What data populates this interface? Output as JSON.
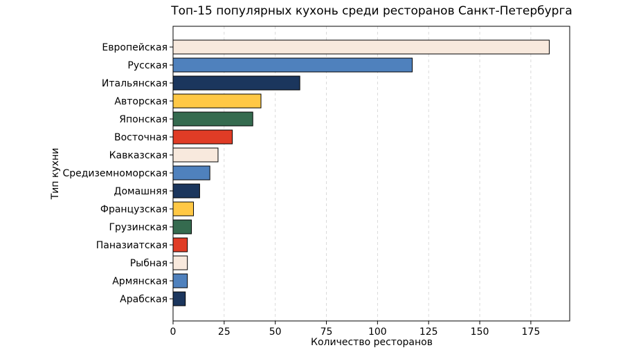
{
  "chart_data": {
    "type": "bar",
    "orientation": "horizontal",
    "title": "Топ-15 популярных кухонь среди ресторанов Санкт-Петербурга",
    "xlabel": "Количество ресторанов",
    "ylabel": "Тип кухни",
    "xlim": [
      0,
      194
    ],
    "xticks": [
      0,
      25,
      50,
      75,
      100,
      125,
      150,
      175
    ],
    "grid": "x-dashed",
    "categories": [
      "Европейская",
      "Русская",
      "Итальянская",
      "Авторская",
      "Японская",
      "Восточная",
      "Кавказская",
      "Средиземноморская",
      "Домашняя",
      "Французская",
      "Грузинская",
      "Паназиатская",
      "Рыбная",
      "Армянская",
      "Арабская"
    ],
    "values": [
      184,
      117,
      62,
      43,
      39,
      29,
      22,
      18,
      13,
      10,
      9,
      7,
      7,
      7,
      6
    ],
    "colors": [
      "#f8e9dd",
      "#4f81bd",
      "#1b365d",
      "#ffc845",
      "#356b4f",
      "#e03c26",
      "#f8e9dd",
      "#4f81bd",
      "#1b365d",
      "#ffc845",
      "#356b4f",
      "#e03c26",
      "#f8e9dd",
      "#4f81bd",
      "#1b365d"
    ]
  }
}
